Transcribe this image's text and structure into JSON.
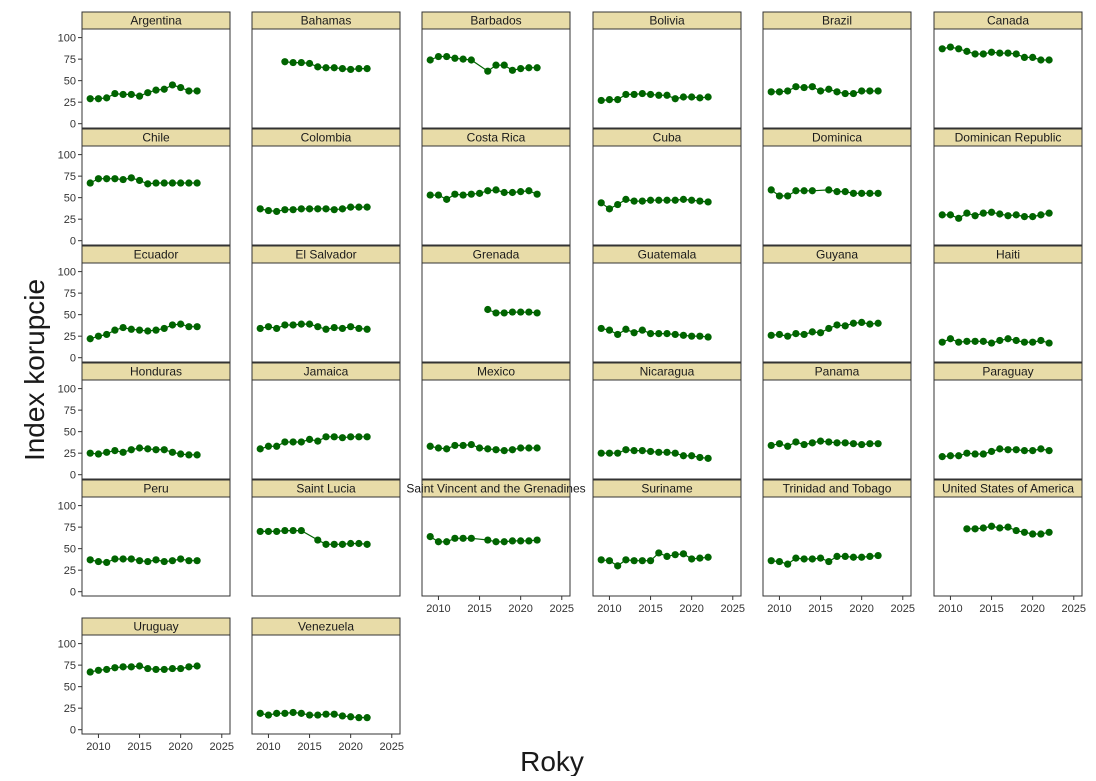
{
  "chart_data": {
    "type": "line",
    "xlabel": "Roky",
    "ylabel": "Index korupcie",
    "xlim": [
      2008,
      2026
    ],
    "ylim": [
      -5,
      110
    ],
    "x_ticks": [
      2010,
      2015,
      2020,
      2025
    ],
    "y_ticks": [
      0,
      25,
      50,
      75,
      100
    ],
    "facet_layout": "wrap, 6 columns",
    "colors": {
      "point": "#006400",
      "line": "#006400",
      "strip": "#e8dca8",
      "panel_border": "#333333"
    },
    "panels": [
      {
        "name": "Argentina",
        "x": [
          2009,
          2010,
          2011,
          2012,
          2013,
          2014,
          2015,
          2016,
          2017,
          2018,
          2019,
          2020,
          2021,
          2022
        ],
        "y": [
          29,
          29,
          30,
          35,
          34,
          34,
          32,
          36,
          39,
          40,
          45,
          42,
          38,
          38
        ]
      },
      {
        "name": "Bahamas",
        "x": [
          2012,
          2013,
          2014,
          2015,
          2016,
          2017,
          2018,
          2019,
          2020,
          2021,
          2022
        ],
        "y": [
          72,
          71,
          71,
          70,
          66,
          65,
          65,
          64,
          63,
          64,
          64
        ]
      },
      {
        "name": "Barbados",
        "x": [
          2009,
          2010,
          2011,
          2012,
          2013,
          2014,
          2016,
          2017,
          2018,
          2019,
          2020,
          2021,
          2022
        ],
        "y": [
          74,
          78,
          78,
          76,
          75,
          74,
          61,
          68,
          68,
          62,
          64,
          65,
          65
        ]
      },
      {
        "name": "Bolivia",
        "x": [
          2009,
          2010,
          2011,
          2012,
          2013,
          2014,
          2015,
          2016,
          2017,
          2018,
          2019,
          2020,
          2021,
          2022
        ],
        "y": [
          27,
          28,
          28,
          34,
          34,
          35,
          34,
          33,
          33,
          29,
          31,
          31,
          30,
          31
        ]
      },
      {
        "name": "Brazil",
        "x": [
          2009,
          2010,
          2011,
          2012,
          2013,
          2014,
          2015,
          2016,
          2017,
          2018,
          2019,
          2020,
          2021,
          2022
        ],
        "y": [
          37,
          37,
          38,
          43,
          42,
          43,
          38,
          40,
          37,
          35,
          35,
          38,
          38,
          38
        ]
      },
      {
        "name": "Canada",
        "x": [
          2009,
          2010,
          2011,
          2012,
          2013,
          2014,
          2015,
          2016,
          2017,
          2018,
          2019,
          2020,
          2021,
          2022
        ],
        "y": [
          87,
          89,
          87,
          84,
          81,
          81,
          83,
          82,
          82,
          81,
          77,
          77,
          74,
          74
        ]
      },
      {
        "name": "Chile",
        "x": [
          2009,
          2010,
          2011,
          2012,
          2013,
          2014,
          2015,
          2016,
          2017,
          2018,
          2019,
          2020,
          2021,
          2022
        ],
        "y": [
          67,
          72,
          72,
          72,
          71,
          73,
          70,
          66,
          67,
          67,
          67,
          67,
          67,
          67
        ]
      },
      {
        "name": "Colombia",
        "x": [
          2009,
          2010,
          2011,
          2012,
          2013,
          2014,
          2015,
          2016,
          2017,
          2018,
          2019,
          2020,
          2021,
          2022
        ],
        "y": [
          37,
          35,
          34,
          36,
          36,
          37,
          37,
          37,
          37,
          36,
          37,
          39,
          39,
          39
        ]
      },
      {
        "name": "Costa Rica",
        "x": [
          2009,
          2010,
          2011,
          2012,
          2013,
          2014,
          2015,
          2016,
          2017,
          2018,
          2019,
          2020,
          2021,
          2022
        ],
        "y": [
          53,
          53,
          48,
          54,
          53,
          54,
          55,
          58,
          59,
          56,
          56,
          57,
          58,
          54
        ]
      },
      {
        "name": "Cuba",
        "x": [
          2009,
          2010,
          2011,
          2012,
          2013,
          2014,
          2015,
          2016,
          2017,
          2018,
          2019,
          2020,
          2021,
          2022
        ],
        "y": [
          44,
          37,
          42,
          48,
          46,
          46,
          47,
          47,
          47,
          47,
          48,
          47,
          46,
          45
        ]
      },
      {
        "name": "Dominica",
        "x": [
          2009,
          2010,
          2011,
          2012,
          2013,
          2014,
          2016,
          2017,
          2018,
          2019,
          2020,
          2021,
          2022
        ],
        "y": [
          59,
          52,
          52,
          58,
          58,
          58,
          59,
          57,
          57,
          55,
          55,
          55,
          55
        ]
      },
      {
        "name": "Dominican Republic",
        "x": [
          2009,
          2010,
          2011,
          2012,
          2013,
          2014,
          2015,
          2016,
          2017,
          2018,
          2019,
          2020,
          2021,
          2022
        ],
        "y": [
          30,
          30,
          26,
          32,
          29,
          32,
          33,
          31,
          29,
          30,
          28,
          28,
          30,
          32
        ]
      },
      {
        "name": "Ecuador",
        "x": [
          2009,
          2010,
          2011,
          2012,
          2013,
          2014,
          2015,
          2016,
          2017,
          2018,
          2019,
          2020,
          2021,
          2022
        ],
        "y": [
          22,
          25,
          27,
          32,
          35,
          33,
          32,
          31,
          32,
          34,
          38,
          39,
          36,
          36
        ]
      },
      {
        "name": "El Salvador",
        "x": [
          2009,
          2010,
          2011,
          2012,
          2013,
          2014,
          2015,
          2016,
          2017,
          2018,
          2019,
          2020,
          2021,
          2022
        ],
        "y": [
          34,
          36,
          34,
          38,
          38,
          39,
          39,
          36,
          33,
          35,
          34,
          36,
          34,
          33
        ]
      },
      {
        "name": "Grenada",
        "x": [
          2016,
          2017,
          2018,
          2019,
          2020,
          2021,
          2022
        ],
        "y": [
          56,
          52,
          52,
          53,
          53,
          53,
          52
        ]
      },
      {
        "name": "Guatemala",
        "x": [
          2009,
          2010,
          2011,
          2012,
          2013,
          2014,
          2015,
          2016,
          2017,
          2018,
          2019,
          2020,
          2021,
          2022
        ],
        "y": [
          34,
          32,
          27,
          33,
          29,
          32,
          28,
          28,
          28,
          27,
          26,
          25,
          25,
          24
        ]
      },
      {
        "name": "Guyana",
        "x": [
          2009,
          2010,
          2011,
          2012,
          2013,
          2014,
          2015,
          2016,
          2017,
          2018,
          2019,
          2020,
          2021,
          2022
        ],
        "y": [
          26,
          27,
          25,
          28,
          27,
          30,
          29,
          34,
          38,
          37,
          40,
          41,
          39,
          40
        ]
      },
      {
        "name": "Haiti",
        "x": [
          2009,
          2010,
          2011,
          2012,
          2013,
          2014,
          2015,
          2016,
          2017,
          2018,
          2019,
          2020,
          2021,
          2022
        ],
        "y": [
          18,
          22,
          18,
          19,
          19,
          19,
          17,
          20,
          22,
          20,
          18,
          18,
          20,
          17
        ]
      },
      {
        "name": "Honduras",
        "x": [
          2009,
          2010,
          2011,
          2012,
          2013,
          2014,
          2015,
          2016,
          2017,
          2018,
          2019,
          2020,
          2021,
          2022
        ],
        "y": [
          25,
          24,
          26,
          28,
          26,
          29,
          31,
          30,
          29,
          29,
          26,
          24,
          23,
          23
        ]
      },
      {
        "name": "Jamaica",
        "x": [
          2009,
          2010,
          2011,
          2012,
          2013,
          2014,
          2015,
          2016,
          2017,
          2018,
          2019,
          2020,
          2021,
          2022
        ],
        "y": [
          30,
          33,
          33,
          38,
          38,
          38,
          41,
          39,
          44,
          44,
          43,
          44,
          44,
          44
        ]
      },
      {
        "name": "Mexico",
        "x": [
          2009,
          2010,
          2011,
          2012,
          2013,
          2014,
          2015,
          2016,
          2017,
          2018,
          2019,
          2020,
          2021,
          2022
        ],
        "y": [
          33,
          31,
          30,
          34,
          34,
          35,
          31,
          30,
          29,
          28,
          29,
          31,
          31,
          31
        ]
      },
      {
        "name": "Nicaragua",
        "x": [
          2009,
          2010,
          2011,
          2012,
          2013,
          2014,
          2015,
          2016,
          2017,
          2018,
          2019,
          2020,
          2021,
          2022
        ],
        "y": [
          25,
          25,
          25,
          29,
          28,
          28,
          27,
          26,
          26,
          25,
          22,
          22,
          20,
          19
        ]
      },
      {
        "name": "Panama",
        "x": [
          2009,
          2010,
          2011,
          2012,
          2013,
          2014,
          2015,
          2016,
          2017,
          2018,
          2019,
          2020,
          2021,
          2022
        ],
        "y": [
          34,
          36,
          33,
          38,
          35,
          37,
          39,
          38,
          37,
          37,
          36,
          35,
          36,
          36
        ]
      },
      {
        "name": "Paraguay",
        "x": [
          2009,
          2010,
          2011,
          2012,
          2013,
          2014,
          2015,
          2016,
          2017,
          2018,
          2019,
          2020,
          2021,
          2022
        ],
        "y": [
          21,
          22,
          22,
          25,
          24,
          24,
          27,
          30,
          29,
          29,
          28,
          28,
          30,
          28
        ]
      },
      {
        "name": "Peru",
        "x": [
          2009,
          2010,
          2011,
          2012,
          2013,
          2014,
          2015,
          2016,
          2017,
          2018,
          2019,
          2020,
          2021,
          2022
        ],
        "y": [
          37,
          35,
          34,
          38,
          38,
          38,
          36,
          35,
          37,
          35,
          36,
          38,
          36,
          36
        ]
      },
      {
        "name": "Saint Lucia",
        "x": [
          2009,
          2010,
          2011,
          2012,
          2013,
          2014,
          2016,
          2017,
          2018,
          2019,
          2020,
          2021,
          2022
        ],
        "y": [
          70,
          70,
          70,
          71,
          71,
          71,
          60,
          55,
          55,
          55,
          56,
          56,
          55
        ]
      },
      {
        "name": "Saint Vincent and the Grenadines",
        "x": [
          2009,
          2010,
          2011,
          2012,
          2013,
          2014,
          2016,
          2017,
          2018,
          2019,
          2020,
          2021,
          2022
        ],
        "y": [
          64,
          58,
          58,
          62,
          62,
          62,
          60,
          58,
          58,
          59,
          59,
          59,
          60
        ]
      },
      {
        "name": "Suriname",
        "x": [
          2009,
          2010,
          2011,
          2012,
          2013,
          2014,
          2015,
          2016,
          2017,
          2018,
          2019,
          2020,
          2021,
          2022
        ],
        "y": [
          37,
          36,
          30,
          37,
          36,
          36,
          36,
          45,
          41,
          43,
          44,
          38,
          39,
          40
        ]
      },
      {
        "name": "Trinidad and Tobago",
        "x": [
          2009,
          2010,
          2011,
          2012,
          2013,
          2014,
          2015,
          2016,
          2017,
          2018,
          2019,
          2020,
          2021,
          2022
        ],
        "y": [
          36,
          35,
          32,
          39,
          38,
          38,
          39,
          35,
          41,
          41,
          40,
          40,
          41,
          42
        ]
      },
      {
        "name": "United States of America",
        "x": [
          2012,
          2013,
          2014,
          2015,
          2016,
          2017,
          2018,
          2019,
          2020,
          2021,
          2022
        ],
        "y": [
          73,
          73,
          74,
          76,
          74,
          75,
          71,
          69,
          67,
          67,
          69
        ]
      },
      {
        "name": "Uruguay",
        "x": [
          2009,
          2010,
          2011,
          2012,
          2013,
          2014,
          2015,
          2016,
          2017,
          2018,
          2019,
          2020,
          2021,
          2022
        ],
        "y": [
          67,
          69,
          70,
          72,
          73,
          73,
          74,
          71,
          70,
          70,
          71,
          71,
          73,
          74
        ]
      },
      {
        "name": "Venezuela",
        "x": [
          2009,
          2010,
          2011,
          2012,
          2013,
          2014,
          2015,
          2016,
          2017,
          2018,
          2019,
          2020,
          2021,
          2022
        ],
        "y": [
          19,
          17,
          19,
          19,
          20,
          19,
          17,
          17,
          18,
          18,
          16,
          15,
          14,
          14
        ]
      }
    ]
  }
}
